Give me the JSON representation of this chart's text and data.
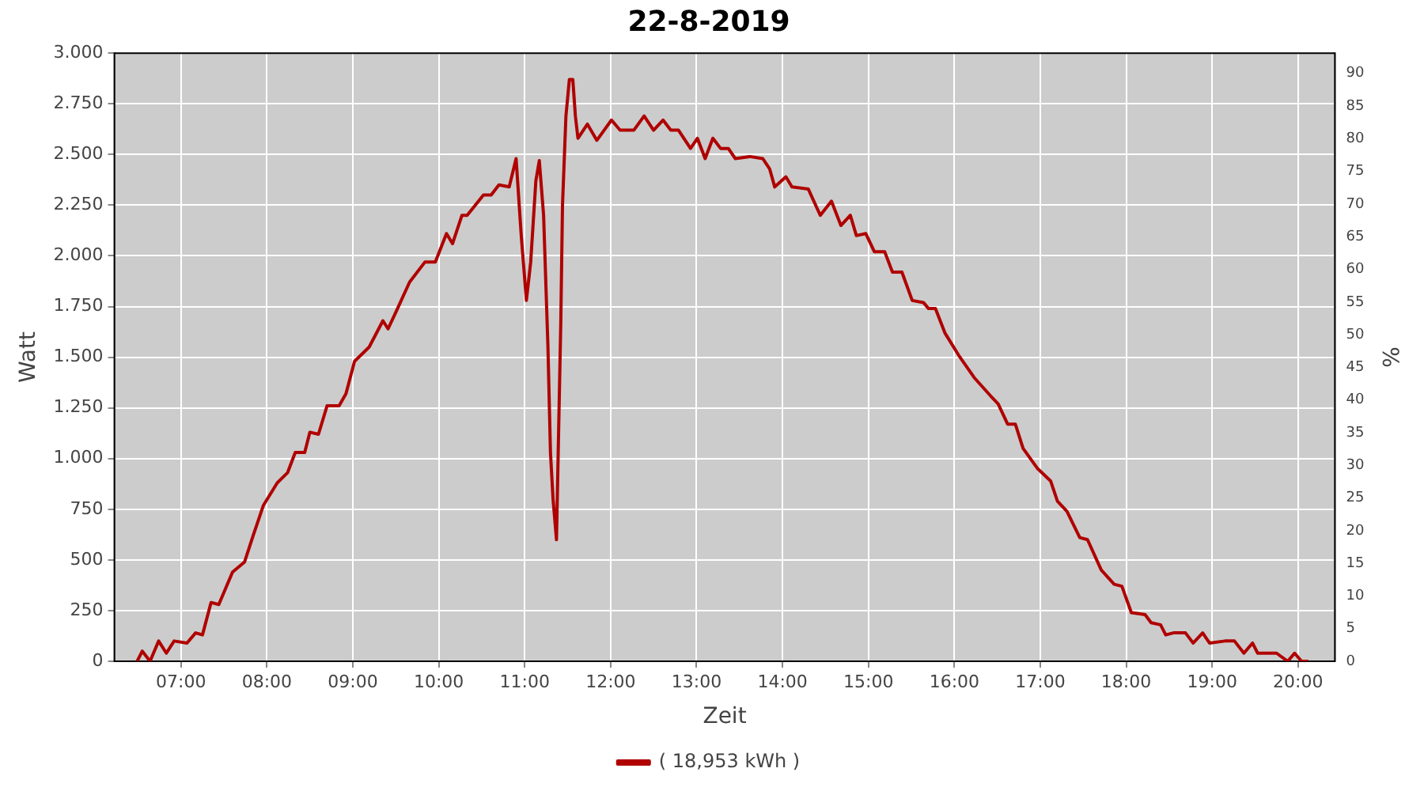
{
  "chart_data": {
    "type": "line",
    "title": "22-8-2019",
    "xlabel": "Zeit",
    "ylabel": "Watt",
    "y2label": "%",
    "xlim": [
      6.225,
      20.43
    ],
    "xticks": [
      {
        "value": 7,
        "label": "07:00"
      },
      {
        "value": 8,
        "label": "08:00"
      },
      {
        "value": 9,
        "label": "09:00"
      },
      {
        "value": 10,
        "label": "10:00"
      },
      {
        "value": 11,
        "label": "11:00"
      },
      {
        "value": 12,
        "label": "12:00"
      },
      {
        "value": 13,
        "label": "13:00"
      },
      {
        "value": 14,
        "label": "14:00"
      },
      {
        "value": 15,
        "label": "15:00"
      },
      {
        "value": 16,
        "label": "16:00"
      },
      {
        "value": 17,
        "label": "17:00"
      },
      {
        "value": 18,
        "label": "18:00"
      },
      {
        "value": 19,
        "label": "19:00"
      },
      {
        "value": 20,
        "label": "20:00"
      }
    ],
    "ylim": [
      0,
      3000
    ],
    "yticks": [
      0,
      250,
      500,
      750,
      {
        "value": 1000,
        "label": "1.000"
      },
      {
        "value": 1250,
        "label": "1.250"
      },
      {
        "value": 1500,
        "label": "1.500"
      },
      {
        "value": 1750,
        "label": "1.750"
      },
      {
        "value": 2000,
        "label": "2.000"
      },
      {
        "value": 2250,
        "label": "2.250"
      },
      {
        "value": 2500,
        "label": "2.500"
      },
      {
        "value": 2750,
        "label": "2.750"
      },
      {
        "value": 3000,
        "label": "3.000"
      }
    ],
    "y2lim": [
      0,
      93.1
    ],
    "y2ticks": [
      0,
      5,
      10,
      15,
      20,
      25,
      30,
      35,
      40,
      45,
      50,
      55,
      60,
      65,
      70,
      75,
      80,
      85,
      90
    ],
    "grid": true,
    "legend": "bottom",
    "marker": "none",
    "series": [
      {
        "name": "( 18,953 kWh )",
        "color": "#b00000",
        "x": [
          6.49,
          6.55,
          6.64,
          6.74,
          6.83,
          6.92,
          7.07,
          7.17,
          7.25,
          7.35,
          7.44,
          7.6,
          7.74,
          7.84,
          7.96,
          8.12,
          8.24,
          8.33,
          8.44,
          8.5,
          8.6,
          8.7,
          8.84,
          8.92,
          9.02,
          9.19,
          9.35,
          9.41,
          9.52,
          9.66,
          9.84,
          9.96,
          10.09,
          10.16,
          10.27,
          10.33,
          10.52,
          10.61,
          10.7,
          10.82,
          10.9,
          10.96,
          11.02,
          11.07,
          11.13,
          11.17,
          11.22,
          11.27,
          11.3,
          11.33,
          11.37,
          11.39,
          11.42,
          11.44,
          11.48,
          11.52,
          11.56,
          11.59,
          11.62,
          11.73,
          11.84,
          12.01,
          12.11,
          12.27,
          12.39,
          12.5,
          12.61,
          12.7,
          12.79,
          12.93,
          13.01,
          13.1,
          13.19,
          13.28,
          13.37,
          13.45,
          13.62,
          13.77,
          13.85,
          13.91,
          14.04,
          14.11,
          14.3,
          14.44,
          14.57,
          14.68,
          14.79,
          14.86,
          14.97,
          15.07,
          15.19,
          15.28,
          15.39,
          15.51,
          15.64,
          15.7,
          15.78,
          15.89,
          16.05,
          16.23,
          16.42,
          16.51,
          16.62,
          16.71,
          16.8,
          16.97,
          17.12,
          17.2,
          17.31,
          17.46,
          17.55,
          17.71,
          17.86,
          17.95,
          18.06,
          18.22,
          18.29,
          18.4,
          18.46,
          18.55,
          18.69,
          18.78,
          18.89,
          18.97,
          19.15,
          19.26,
          19.37,
          19.47,
          19.53,
          19.75,
          19.88,
          19.96,
          20.04,
          20.12
        ],
        "values": [
          0,
          50,
          0,
          100,
          40,
          100,
          90,
          140,
          130,
          290,
          280,
          440,
          490,
          620,
          770,
          880,
          930,
          1030,
          1030,
          1130,
          1120,
          1260,
          1260,
          1320,
          1480,
          1550,
          1680,
          1640,
          1740,
          1870,
          1970,
          1970,
          2110,
          2060,
          2200,
          2200,
          2300,
          2300,
          2350,
          2340,
          2480,
          2100,
          1780,
          1970,
          2370,
          2470,
          2200,
          1560,
          1030,
          800,
          600,
          1030,
          1670,
          2250,
          2690,
          2870,
          2870,
          2690,
          2580,
          2650,
          2570,
          2670,
          2620,
          2620,
          2690,
          2620,
          2670,
          2620,
          2620,
          2530,
          2580,
          2480,
          2580,
          2530,
          2530,
          2480,
          2490,
          2480,
          2430,
          2340,
          2390,
          2340,
          2330,
          2200,
          2270,
          2150,
          2200,
          2100,
          2110,
          2020,
          2020,
          1920,
          1920,
          1780,
          1770,
          1740,
          1740,
          1620,
          1510,
          1400,
          1310,
          1270,
          1170,
          1170,
          1050,
          950,
          890,
          790,
          740,
          610,
          600,
          450,
          380,
          370,
          240,
          230,
          190,
          180,
          130,
          140,
          140,
          90,
          140,
          90,
          100,
          100,
          40,
          90,
          40,
          40,
          0,
          40,
          0,
          0
        ]
      }
    ]
  }
}
